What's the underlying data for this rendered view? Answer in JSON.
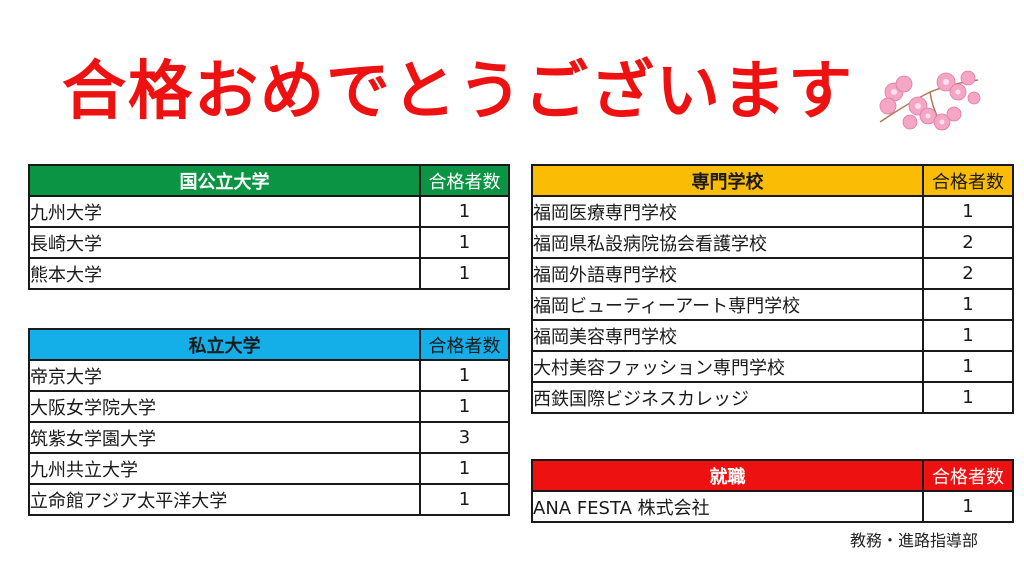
{
  "title": "合格おめでとうございます",
  "footer": "教務・進路指導部",
  "colors": {
    "title": "#ee1111",
    "national": "#0b9444",
    "private": "#14aee9",
    "senmon": "#fbbc05",
    "shushoku": "#ee1111"
  },
  "tables": {
    "national": {
      "header": "国公立大学",
      "count_header": "合格者数",
      "rows": [
        {
          "name": "九州大学",
          "count": "1"
        },
        {
          "name": "長崎大学",
          "count": "1"
        },
        {
          "name": "熊本大学",
          "count": "1"
        }
      ]
    },
    "private": {
      "header": "私立大学",
      "count_header": "合格者数",
      "rows": [
        {
          "name": "帝京大学",
          "count": "1"
        },
        {
          "name": "大阪女学院大学",
          "count": "1"
        },
        {
          "name": "筑紫女学園大学",
          "count": "3"
        },
        {
          "name": "九州共立大学",
          "count": "1"
        },
        {
          "name": "立命館アジア太平洋大学",
          "count": "1"
        }
      ]
    },
    "senmon": {
      "header": "専門学校",
      "count_header": "合格者数",
      "rows": [
        {
          "name": "福岡医療専門学校",
          "count": "1"
        },
        {
          "name": "福岡県私設病院協会看護学校",
          "count": "2"
        },
        {
          "name": "福岡外語専門学校",
          "count": "2"
        },
        {
          "name": "福岡ビューティーアート専門学校",
          "count": "1"
        },
        {
          "name": "福岡美容専門学校",
          "count": "1"
        },
        {
          "name": "大村美容ファッション専門学校",
          "count": "1"
        },
        {
          "name": "西鉄国際ビジネスカレッジ",
          "count": "1"
        }
      ]
    },
    "shushoku": {
      "header": "就職",
      "count_header": "合格者数",
      "rows": [
        {
          "name": "ANA FESTA 株式会社",
          "count": "1"
        }
      ]
    }
  }
}
